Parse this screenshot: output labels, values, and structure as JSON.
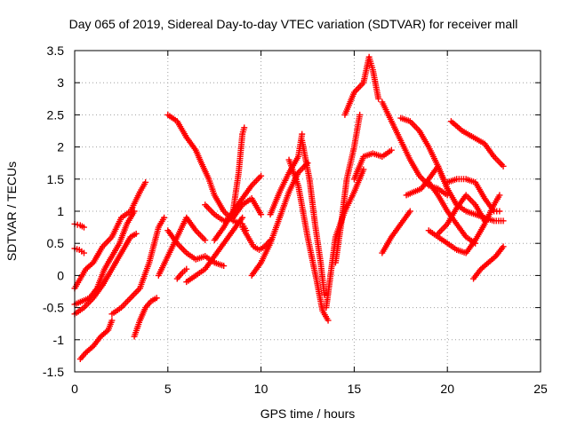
{
  "chart_data": {
    "type": "scatter",
    "title": "Day 065 of 2019, Sidereal Day-to-day VTEC variation (SDTVAR) for receiver mall",
    "xlabel": "GPS time / hours",
    "ylabel": "SDTVAR / TECUs",
    "xlim": [
      0,
      25
    ],
    "ylim": [
      -1.5,
      3.5
    ],
    "grid": true,
    "marker": "+",
    "color": "#ff0000",
    "x_ticks": [
      "0",
      "5",
      "10",
      "15",
      "20",
      "25"
    ],
    "y_ticks": [
      "-1.5",
      "-1",
      "-0.5",
      "0",
      "0.5",
      "1",
      "1.5",
      "2",
      "2.5",
      "3",
      "3.5"
    ],
    "series": [
      {
        "x": [
          0.0,
          0.3,
          0.6,
          1.0,
          1.5,
          2.0,
          2.5,
          3.0,
          3.5,
          3.8
        ],
        "y": [
          -0.2,
          -0.05,
          0.1,
          0.2,
          0.45,
          0.6,
          0.9,
          1.0,
          1.3,
          1.45
        ]
      },
      {
        "x": [
          0.0,
          0.4,
          0.8,
          1.2,
          1.6,
          2.0,
          2.4,
          2.8,
          3.2
        ],
        "y": [
          -0.45,
          -0.4,
          -0.35,
          -0.2,
          0.1,
          0.3,
          0.5,
          0.8,
          1.0
        ]
      },
      {
        "x": [
          0.0,
          0.5,
          1.0,
          1.5,
          2.0,
          2.5,
          3.0,
          3.3
        ],
        "y": [
          -0.6,
          -0.5,
          -0.35,
          -0.15,
          0.1,
          0.35,
          0.6,
          0.65
        ]
      },
      {
        "x": [
          0.0,
          0.3,
          0.5
        ],
        "y": [
          0.8,
          0.78,
          0.75
        ]
      },
      {
        "x": [
          0.0,
          0.25,
          0.5
        ],
        "y": [
          0.42,
          0.4,
          0.35
        ]
      },
      {
        "x": [
          0.3,
          0.6,
          1.0,
          1.4,
          1.8,
          2.0
        ],
        "y": [
          -1.3,
          -1.2,
          -1.1,
          -0.95,
          -0.85,
          -0.7
        ]
      },
      {
        "x": [
          2.0,
          2.5,
          3.0,
          3.5,
          4.0,
          4.5,
          4.8
        ],
        "y": [
          -0.6,
          -0.5,
          -0.35,
          -0.2,
          0.2,
          0.75,
          0.9
        ]
      },
      {
        "x": [
          3.2,
          3.5,
          3.8,
          4.1,
          4.4
        ],
        "y": [
          -0.95,
          -0.7,
          -0.5,
          -0.4,
          -0.35
        ]
      },
      {
        "x": [
          4.5,
          5.0,
          5.5,
          6.0,
          6.5,
          7.0
        ],
        "y": [
          0.0,
          0.3,
          0.6,
          0.9,
          0.7,
          0.55
        ]
      },
      {
        "x": [
          5.0,
          5.5,
          6.0,
          6.5,
          7.0,
          7.5,
          8.0
        ],
        "y": [
          0.7,
          0.5,
          0.35,
          0.25,
          0.3,
          0.2,
          0.15
        ]
      },
      {
        "x": [
          5.0,
          5.5,
          6.0,
          6.5,
          6.8,
          7.2,
          7.5,
          8.0,
          8.5,
          9.0,
          9.2
        ],
        "y": [
          2.5,
          2.4,
          2.15,
          1.95,
          1.75,
          1.5,
          1.25,
          1.0,
          0.85,
          0.8,
          0.7
        ]
      },
      {
        "x": [
          5.5,
          5.8,
          6.0
        ],
        "y": [
          -0.05,
          0.05,
          0.1
        ]
      },
      {
        "x": [
          6.0,
          6.5,
          7.0,
          7.5,
          8.0,
          8.5,
          9.0
        ],
        "y": [
          -0.1,
          0.0,
          0.1,
          0.3,
          0.5,
          0.7,
          0.9
        ]
      },
      {
        "x": [
          7.0,
          7.5,
          8.0,
          8.5,
          9.0,
          9.5,
          10.0
        ],
        "y": [
          1.1,
          0.95,
          0.85,
          0.9,
          1.1,
          1.2,
          0.95
        ]
      },
      {
        "x": [
          7.5,
          8.0,
          8.5,
          9.0,
          9.5,
          10.0
        ],
        "y": [
          0.55,
          0.75,
          1.0,
          1.2,
          1.4,
          1.55
        ]
      },
      {
        "x": [
          8.5,
          8.8,
          9.0,
          9.1
        ],
        "y": [
          1.0,
          1.6,
          2.2,
          2.3
        ]
      },
      {
        "x": [
          9.0,
          9.3,
          9.6,
          9.9,
          10.2,
          10.5
        ],
        "y": [
          0.75,
          0.6,
          0.45,
          0.4,
          0.45,
          0.55
        ]
      },
      {
        "x": [
          9.5,
          10.0,
          10.5,
          11.0,
          11.5,
          12.0,
          12.5
        ],
        "y": [
          0.0,
          0.2,
          0.5,
          0.9,
          1.3,
          1.6,
          1.75
        ]
      },
      {
        "x": [
          10.5,
          11.0,
          11.5,
          12.0,
          12.2
        ],
        "y": [
          0.95,
          1.3,
          1.6,
          1.85,
          2.2
        ]
      },
      {
        "x": [
          11.5,
          12.0,
          12.5,
          13.0,
          13.3,
          13.6
        ],
        "y": [
          1.8,
          1.4,
          0.6,
          -0.1,
          -0.55,
          -0.7
        ]
      },
      {
        "x": [
          12.2,
          12.6,
          12.9,
          13.2,
          13.4
        ],
        "y": [
          2.1,
          1.5,
          0.8,
          0.2,
          -0.3
        ]
      },
      {
        "x": [
          13.5,
          14.0,
          14.5,
          15.0,
          15.5
        ],
        "y": [
          -0.5,
          0.6,
          1.0,
          1.3,
          1.65
        ]
      },
      {
        "x": [
          14.0,
          14.3,
          14.6,
          15.0,
          15.3
        ],
        "y": [
          0.2,
          0.8,
          1.5,
          2.0,
          2.5
        ]
      },
      {
        "x": [
          14.5,
          15.0,
          15.5,
          15.8,
          16.0,
          16.3
        ],
        "y": [
          2.5,
          2.85,
          3.0,
          3.4,
          3.2,
          2.75
        ]
      },
      {
        "x": [
          15.0,
          15.5,
          16.0,
          16.5,
          17.0
        ],
        "y": [
          1.5,
          1.85,
          1.9,
          1.85,
          1.95
        ]
      },
      {
        "x": [
          16.5,
          17.0,
          17.5,
          18.0,
          18.5,
          19.0,
          19.5,
          20.0
        ],
        "y": [
          2.7,
          2.4,
          2.1,
          1.8,
          1.55,
          1.4,
          1.35,
          1.25
        ]
      },
      {
        "x": [
          16.5,
          17.0,
          17.5,
          18.0
        ],
        "y": [
          0.35,
          0.6,
          0.8,
          1.0
        ]
      },
      {
        "x": [
          17.5,
          18.0,
          18.5,
          19.0,
          19.5,
          20.0
        ],
        "y": [
          2.45,
          2.4,
          2.25,
          2.0,
          1.7,
          1.35
        ]
      },
      {
        "x": [
          17.8,
          18.2,
          18.6,
          19.0,
          19.5,
          20.0,
          20.5,
          21.0,
          21.5,
          22.0,
          22.5,
          23.0
        ],
        "y": [
          1.25,
          1.3,
          1.35,
          1.5,
          1.7,
          1.35,
          1.1,
          1.0,
          0.95,
          0.9,
          0.85,
          0.85
        ]
      },
      {
        "x": [
          19.0,
          19.5,
          20.0,
          20.5,
          21.0,
          21.5
        ],
        "y": [
          1.45,
          1.25,
          1.0,
          0.8,
          0.6,
          0.5
        ]
      },
      {
        "x": [
          19.0,
          19.5,
          20.0,
          20.5,
          21.0,
          21.5,
          22.0,
          22.5,
          22.8
        ],
        "y": [
          0.7,
          0.6,
          0.5,
          0.4,
          0.35,
          0.55,
          0.8,
          1.1,
          1.25
        ]
      },
      {
        "x": [
          19.5,
          20.0,
          20.5,
          21.0,
          21.5,
          22.0
        ],
        "y": [
          0.65,
          0.8,
          1.05,
          1.25,
          1.1,
          0.85
        ]
      },
      {
        "x": [
          20.0,
          20.5,
          21.0,
          21.5,
          22.0,
          22.5,
          22.8
        ],
        "y": [
          1.45,
          1.5,
          1.5,
          1.45,
          1.2,
          1.0,
          1.0
        ]
      },
      {
        "x": [
          20.2,
          20.8,
          21.4,
          22.0,
          22.5,
          23.0
        ],
        "y": [
          2.4,
          2.25,
          2.15,
          2.05,
          1.85,
          1.7
        ]
      },
      {
        "x": [
          21.4,
          21.8,
          22.2,
          22.6,
          23.0
        ],
        "y": [
          -0.05,
          0.1,
          0.2,
          0.3,
          0.45
        ]
      }
    ]
  }
}
